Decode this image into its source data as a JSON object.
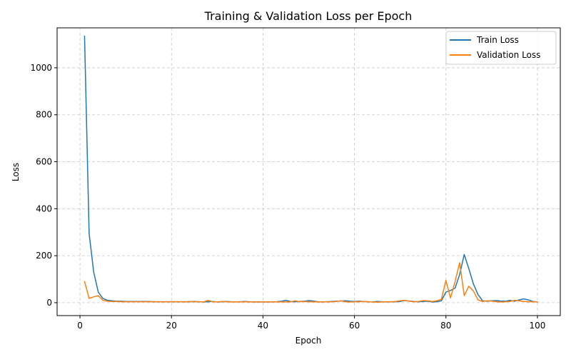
{
  "chart_data": {
    "type": "line",
    "title": "Training & Validation Loss per Epoch",
    "xlabel": "Epoch",
    "ylabel": "Loss",
    "xlim": [
      -5,
      105
    ],
    "ylim": [
      -55,
      1170
    ],
    "xticks": [
      0,
      20,
      40,
      60,
      80,
      100
    ],
    "yticks": [
      0,
      200,
      400,
      600,
      800,
      1000
    ],
    "grid": true,
    "legend_position": "top-right",
    "x": [
      1,
      2,
      3,
      4,
      5,
      6,
      7,
      8,
      9,
      10,
      11,
      12,
      13,
      14,
      15,
      16,
      17,
      18,
      19,
      20,
      21,
      22,
      23,
      24,
      25,
      26,
      27,
      28,
      29,
      30,
      31,
      32,
      33,
      34,
      35,
      36,
      37,
      38,
      39,
      40,
      41,
      42,
      43,
      44,
      45,
      46,
      47,
      48,
      49,
      50,
      51,
      52,
      53,
      54,
      55,
      56,
      57,
      58,
      59,
      60,
      61,
      62,
      63,
      64,
      65,
      66,
      67,
      68,
      69,
      70,
      71,
      72,
      73,
      74,
      75,
      76,
      77,
      78,
      79,
      80,
      81,
      82,
      83,
      84,
      85,
      86,
      87,
      88,
      89,
      90,
      91,
      92,
      93,
      94,
      95,
      96,
      97,
      98,
      99,
      100
    ],
    "series": [
      {
        "name": "Train Loss",
        "color": "#1f77b4",
        "values": [
          1135,
          295,
          130,
          45,
          18,
          10,
          8,
          6,
          6,
          5,
          5,
          5,
          5,
          5,
          5,
          4,
          4,
          4,
          4,
          4,
          4,
          4,
          4,
          4,
          5,
          4,
          3,
          4,
          5,
          3,
          4,
          5,
          4,
          3,
          4,
          5,
          4,
          3,
          3,
          3,
          3,
          3,
          4,
          6,
          10,
          5,
          4,
          5,
          6,
          9,
          7,
          4,
          3,
          4,
          5,
          6,
          7,
          8,
          6,
          5,
          6,
          5,
          4,
          3,
          5,
          4,
          3,
          4,
          4,
          5,
          9,
          7,
          5,
          4,
          5,
          6,
          3,
          4,
          8,
          45,
          52,
          62,
          120,
          205,
          145,
          80,
          35,
          8,
          6,
          8,
          9,
          7,
          6,
          10,
          6,
          12,
          16,
          12,
          5,
          3
        ]
      },
      {
        "name": "Validation Loss",
        "color": "#ff7f0e",
        "values": [
          90,
          18,
          25,
          30,
          10,
          6,
          5,
          5,
          4,
          4,
          4,
          4,
          4,
          4,
          4,
          4,
          4,
          3,
          4,
          4,
          4,
          4,
          3,
          5,
          4,
          4,
          3,
          10,
          4,
          3,
          5,
          4,
          3,
          4,
          3,
          4,
          3,
          3,
          3,
          3,
          3,
          4,
          3,
          4,
          3,
          3,
          8,
          4,
          5,
          4,
          4,
          3,
          3,
          4,
          4,
          5,
          8,
          4,
          3,
          4,
          4,
          5,
          4,
          3,
          2,
          3,
          4,
          3,
          5,
          8,
          10,
          6,
          4,
          5,
          9,
          8,
          5,
          8,
          14,
          95,
          20,
          90,
          170,
          30,
          70,
          50,
          12,
          5,
          8,
          7,
          4,
          3,
          4,
          5,
          10,
          8,
          5,
          4,
          4,
          3
        ]
      }
    ]
  }
}
